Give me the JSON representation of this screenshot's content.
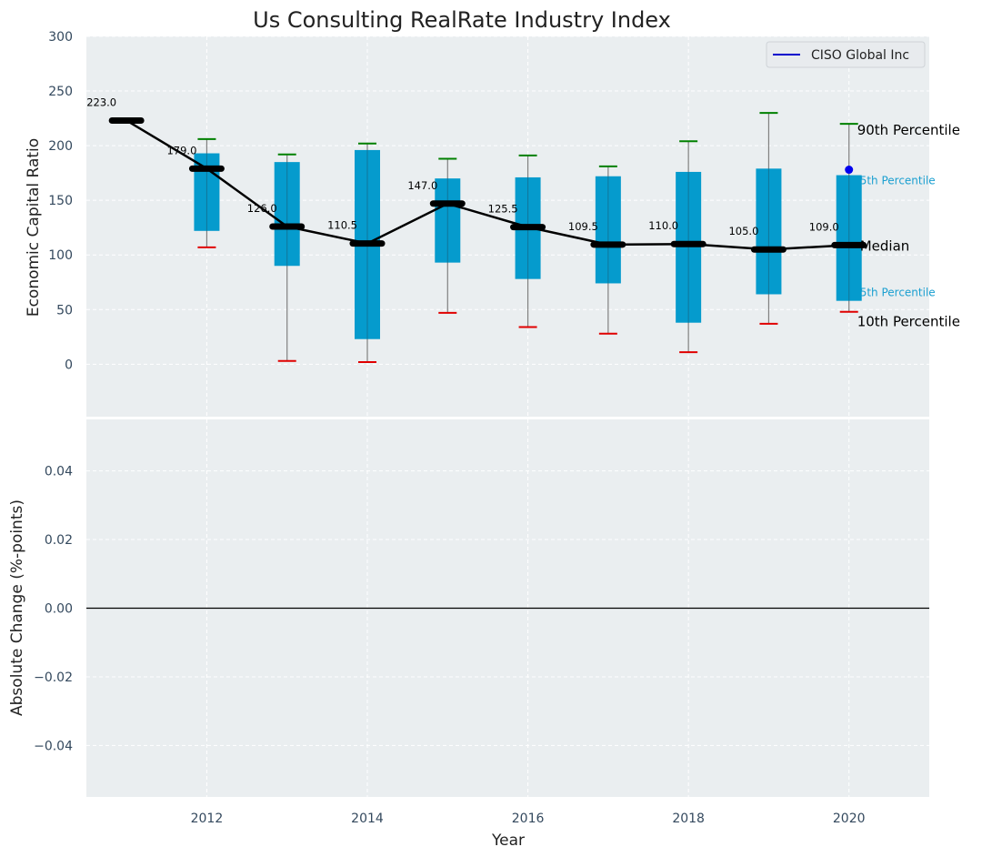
{
  "chart_data": [
    {
      "type": "box",
      "title": "Us Consulting RealRate Industry Index",
      "xlabel": "",
      "ylabel": "Economic Capital Ratio",
      "ylim": [
        -48,
        300
      ],
      "xlim": [
        2010.5,
        2021
      ],
      "yticks": [
        0,
        50,
        100,
        150,
        200,
        250,
        300
      ],
      "grid": true,
      "legend": {
        "position": "top-right",
        "entries": [
          {
            "label": "CISO Global Inc",
            "color": "#0000cc"
          }
        ]
      },
      "median_line": {
        "x": [
          2011,
          2012,
          2013,
          2014,
          2015,
          2016,
          2017,
          2018,
          2019,
          2020
        ],
        "values": [
          223.0,
          179.0,
          126.0,
          110.5,
          147.0,
          125.5,
          109.5,
          110.0,
          105.0,
          109.0
        ],
        "labels": [
          "223.0",
          "179.0",
          "126.0",
          "110.5",
          "147.0",
          "125.5",
          "109.5",
          "110.0",
          "105.0",
          "109.0"
        ]
      },
      "boxes": [
        {
          "x": 2012,
          "p10": 107,
          "p25": 122,
          "p75": 193,
          "p90": 206
        },
        {
          "x": 2013,
          "p10": 3,
          "p25": 90,
          "p75": 185,
          "p90": 192
        },
        {
          "x": 2014,
          "p10": 2,
          "p25": 23,
          "p75": 196,
          "p90": 202
        },
        {
          "x": 2015,
          "p10": 47,
          "p25": 93,
          "p75": 170,
          "p90": 188
        },
        {
          "x": 2016,
          "p10": 34,
          "p25": 78,
          "p75": 171,
          "p90": 191
        },
        {
          "x": 2017,
          "p10": 28,
          "p25": 74,
          "p75": 172,
          "p90": 181
        },
        {
          "x": 2018,
          "p10": 11,
          "p25": 38,
          "p75": 176,
          "p90": 204
        },
        {
          "x": 2019,
          "p10": 37,
          "p25": 64,
          "p75": 179,
          "p90": 230
        },
        {
          "x": 2020,
          "p10": 48,
          "p25": 58,
          "p75": 173,
          "p90": 220
        }
      ],
      "company_points": [
        {
          "x": 2020,
          "y": 178,
          "color": "#0000ee"
        }
      ],
      "annotations": {
        "p90": "90th Percentile",
        "p75": "75th Percentile",
        "median": "Median",
        "p25": "25th Percentile",
        "p10": "10th Percentile"
      },
      "colors": {
        "box": "#0099cc",
        "median": "#000000",
        "p90_cap": "#008000",
        "p10_cap": "#e00000",
        "whisker": "#808080"
      }
    },
    {
      "type": "line",
      "xlabel": "Year",
      "ylabel": "Absolute Change (%-points)",
      "ylim": [
        -0.055,
        0.055
      ],
      "yticks": [
        -0.04,
        -0.02,
        0.0,
        0.02,
        0.04
      ],
      "ytick_labels": [
        "−0.04",
        "−0.02",
        "0.00",
        "0.02",
        "0.04"
      ],
      "xticks": [
        2012,
        2014,
        2016,
        2018,
        2020
      ],
      "xtick_labels": [
        "2012",
        "2014",
        "2016",
        "2018",
        "2020"
      ],
      "hline": 0.0,
      "series": [],
      "grid": true
    }
  ]
}
